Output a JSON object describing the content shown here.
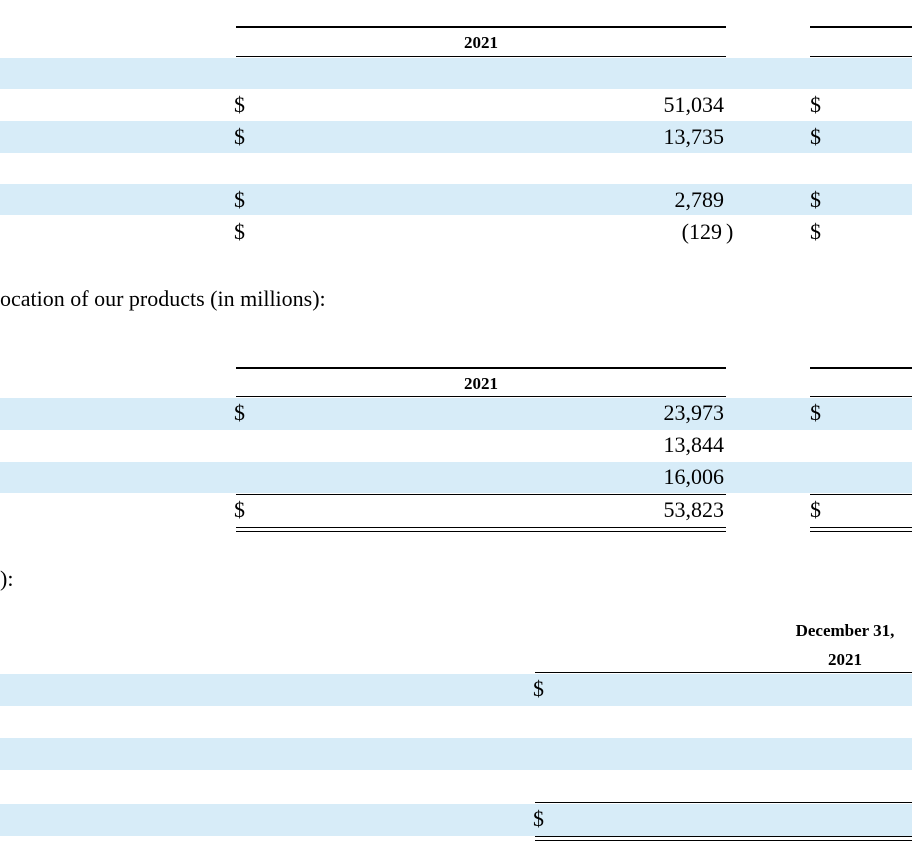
{
  "table1": {
    "header_year": "2021",
    "rows": [
      {
        "symbol": "$",
        "value": "51,034",
        "symbol2": "$"
      },
      {
        "symbol": "$",
        "value": "13,735",
        "symbol2": "$"
      },
      {
        "symbol": "$",
        "value": "2,789",
        "symbol2": "$"
      },
      {
        "symbol": "$",
        "value": "(129",
        "paren": ")",
        "symbol2": "$"
      }
    ]
  },
  "caption2": "ocation of our products (in millions):",
  "table2": {
    "header_year": "2021",
    "rows": [
      {
        "symbol": "$",
        "value": "23,973",
        "symbol2": "$"
      },
      {
        "value": "13,844"
      },
      {
        "value": "16,006"
      },
      {
        "symbol": "$",
        "value": "53,823",
        "symbol2": "$"
      }
    ]
  },
  "caption3": "):",
  "table3": {
    "header_line1": "December 31,",
    "header_year": "2021",
    "rows": [
      {
        "symbol": "$"
      },
      {
        "symbol": "$"
      }
    ]
  }
}
